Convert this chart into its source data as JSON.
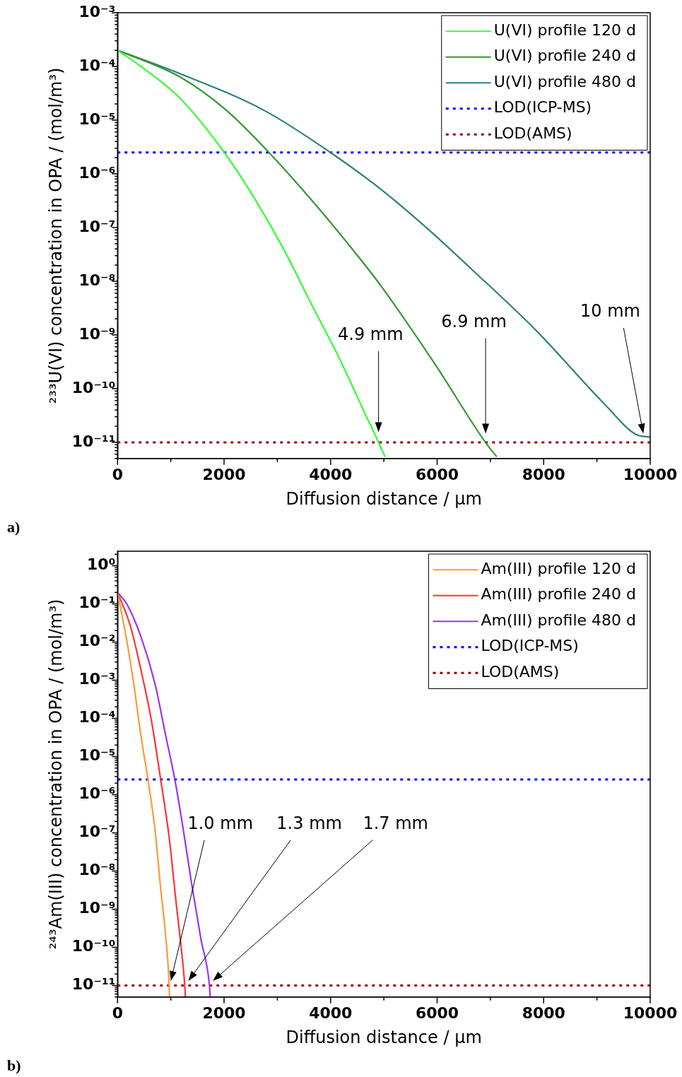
{
  "chart_data": [
    {
      "type": "line",
      "xlabel": "Diffusion distance / µm",
      "ylabel": "²³³U(VI) concentration in OPA / (mol/m³)",
      "xlim": [
        0,
        10000
      ],
      "xticks": [
        0,
        {
          "value": 1000,
          "label": null
        },
        2000,
        {
          "value": 3000,
          "label": null
        },
        4000,
        {
          "value": 5000,
          "label": null
        },
        6000,
        {
          "value": 7000,
          "label": null
        },
        8000,
        {
          "value": 9000,
          "label": null
        },
        10000
      ],
      "ylim": [
        5e-12,
        0.001
      ],
      "yticks": [
        {
          "value": 1e-11,
          "label": "10⁻¹¹"
        },
        {
          "value": 1e-10,
          "label": "10⁻¹⁰"
        },
        {
          "value": 1e-09,
          "label": "10⁻⁹"
        },
        {
          "value": 1e-08,
          "label": "10⁻⁸"
        },
        {
          "value": 1e-07,
          "label": "10⁻⁷"
        },
        {
          "value": 1e-06,
          "label": "10⁻⁶"
        },
        {
          "value": 1e-05,
          "label": "10⁻⁵"
        },
        {
          "value": 0.0001,
          "label": "10⁻⁴"
        },
        {
          "value": 0.001,
          "label": "10⁻³"
        }
      ],
      "log": "y",
      "grid": false,
      "legend": "top right",
      "line_style": "solid",
      "series": [
        {
          "name": "U(VI) profile 120 d",
          "color": "#33ff33",
          "x": [
            0,
            410,
            1182,
            2005,
            2563,
            3147,
            3625,
            4130,
            4688,
            4900,
            5020
          ],
          "values": [
            0.0002,
            0.000105,
            2.5e-05,
            2.5e-06,
            3.6e-07,
            3.5e-08,
            4e-09,
            4.3e-10,
            2.8e-11,
            1e-11,
            5.4e-12
          ]
        },
        {
          "name": "U(VI) profile 240 d",
          "color": "#339933",
          "x": [
            0,
            1182,
            2052,
            2842,
            3625,
            4422,
            4954,
            5976,
            6906,
            7118
          ],
          "values": [
            0.0002,
            6.3e-05,
            1.5e-05,
            2.5e-06,
            3.4e-07,
            3.8e-08,
            8e-09,
            2.7e-10,
            1e-11,
            5.4e-12
          ]
        },
        {
          "name": "U(VI) profile 480 d",
          "color": "#2e8080",
          "x": [
            0,
            1076,
            2762,
            3997,
            4940,
            5843,
            6640,
            7862,
            9163,
            9734,
            10000
          ],
          "values": [
            0.0002,
            8e-05,
            1.5e-05,
            2.5e-06,
            5.2e-07,
            9.1e-08,
            1.7e-08,
            1.2e-09,
            4.9e-11,
            1.4e-11,
            1.25e-11
          ]
        }
      ],
      "ref_lines": [
        {
          "axis": "y",
          "value": 2.5e-06,
          "label": "LOD(ICP-MS)",
          "color": "#0000ff",
          "line_style": "dotted"
        },
        {
          "axis": "y",
          "value": 1e-11,
          "label": "LOD(AMS)",
          "color": "#990000",
          "line_style": "dotted"
        }
      ],
      "annotations": [
        "4.9 mm",
        "6.9 mm",
        "10 mm",
        "a)"
      ]
    },
    {
      "type": "line",
      "xlabel": "Diffusion distance / µm",
      "ylabel": "²⁴³Am(III) concentration in OPA / (mol/m³)",
      "xlim": [
        0,
        10000
      ],
      "xticks": [
        0,
        {
          "value": 1000,
          "label": null
        },
        2000,
        {
          "value": 3000,
          "label": null
        },
        4000,
        {
          "value": 5000,
          "label": null
        },
        6000,
        {
          "value": 7000,
          "label": null
        },
        8000,
        {
          "value": 9000,
          "label": null
        },
        10000
      ],
      "ylim": [
        5e-12,
        2.4
      ],
      "yticks": [
        {
          "value": 1e-11,
          "label": "10⁻¹¹"
        },
        {
          "value": 1e-10,
          "label": "10⁻¹⁰"
        },
        {
          "value": 1e-09,
          "label": "10⁻⁹"
        },
        {
          "value": 1e-08,
          "label": "10⁻⁸"
        },
        {
          "value": 1e-07,
          "label": "10⁻⁷"
        },
        {
          "value": 1e-06,
          "label": "10⁻⁶"
        },
        {
          "value": 1e-05,
          "label": "10⁻⁵"
        },
        {
          "value": 0.0001,
          "label": "10⁻⁴"
        },
        {
          "value": 0.001,
          "label": "10⁻³"
        },
        {
          "value": 0.01,
          "label": "10⁻²"
        },
        {
          "value": 0.1,
          "label": "10⁻¹"
        },
        {
          "value": 1,
          "label": "10⁰"
        }
      ],
      "log": "y",
      "grid": false,
      "legend": "top right",
      "line_style": "solid",
      "series": [
        {
          "name": "Am(III) profile 120 d",
          "color": "#ff9933",
          "x": [
            0,
            173,
            305,
            438,
            571,
            704,
            810,
            903,
            969,
            975
          ],
          "values": [
            0.2,
            0.011,
            0.0008,
            3.6e-05,
            2.5e-06,
            1.2e-07,
            3.5e-09,
            2e-10,
            1e-11,
            5e-12
          ]
        },
        {
          "name": "Am(III) profile 240 d",
          "color": "#ff3333",
          "x": [
            0,
            239,
            438,
            637,
            810,
            969,
            1102,
            1195,
            1262,
            1275
          ],
          "values": [
            0.2,
            0.027,
            0.0019,
            8.7e-05,
            2.5e-06,
            7.6e-08,
            1.4e-09,
            1e-10,
            1e-11,
            5e-12
          ]
        },
        {
          "name": "Am(III) profile 480 d",
          "color": "#9933ff",
          "x": [
            0,
            173,
            438,
            704,
            903,
            1076,
            1235,
            1394,
            1567,
            1726,
            1740
          ],
          "values": [
            0.2,
            0.1,
            0.014,
            0.0008,
            3.6e-05,
            2.5e-06,
            1.2e-07,
            4.4e-09,
            1.6e-10,
            1e-11,
            5e-12
          ]
        }
      ],
      "ref_lines": [
        {
          "axis": "y",
          "value": 2.5e-06,
          "label": "LOD(ICP-MS)",
          "color": "#0000ff",
          "line_style": "dotted"
        },
        {
          "axis": "y",
          "value": 1e-11,
          "label": "LOD(AMS)",
          "color": "#990000",
          "line_style": "dotted"
        }
      ],
      "annotations": [
        "1.0 mm",
        "1.3 mm",
        "1.7 mm",
        "b)"
      ]
    }
  ]
}
